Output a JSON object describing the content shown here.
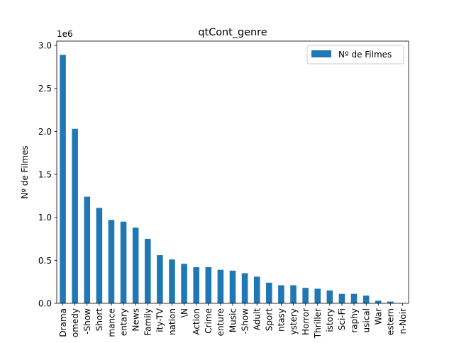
{
  "chart_data": {
    "type": "bar",
    "title": "qtCont_genre",
    "ylabel": "Nº de Filmes",
    "xlabel": "",
    "y_multiplier_label": "1e6",
    "ylim": [
      0,
      3.05
    ],
    "yticks": [
      0.0,
      0.5,
      1.0,
      1.5,
      2.0,
      2.5,
      3.0
    ],
    "ytick_labels": [
      "0.0",
      "0.5",
      "1.0",
      "1.5",
      "2.0",
      "2.5",
      "3.0"
    ],
    "categories": [
      "Drama",
      "Comedy",
      "Talk-Show",
      "Short",
      "Romance",
      "Documentary",
      "News",
      "Family",
      "Reality-TV",
      "Animation",
      "\\N",
      "Action",
      "Crime",
      "Adventure",
      "Music",
      "Game-Show",
      "Adult",
      "Sport",
      "Fantasy",
      "Mystery",
      "Horror",
      "Thriller",
      "History",
      "Sci-Fi",
      "Biography",
      "Musical",
      "War",
      "Western",
      "Film-Noir"
    ],
    "tick_labels_visible": [
      "Drama",
      "omedy",
      "-Show",
      "Short",
      "mance",
      "entary",
      "News",
      "Family",
      "ity-TV",
      "nation",
      "\\N",
      "Action",
      "Crime",
      "enture",
      "Music",
      "-Show",
      "Adult",
      "Sport",
      "ntasy",
      "ystery",
      "Horror",
      "Thriller",
      "istory",
      "Sci-Fi",
      "raphy",
      "usical",
      "War",
      "estern",
      "n-Noir"
    ],
    "series": [
      {
        "name": "Nº de Filmes",
        "values": [
          2.89,
          2.03,
          1.24,
          1.11,
          0.97,
          0.95,
          0.88,
          0.75,
          0.56,
          0.51,
          0.46,
          0.42,
          0.42,
          0.39,
          0.38,
          0.35,
          0.31,
          0.24,
          0.21,
          0.21,
          0.18,
          0.17,
          0.15,
          0.11,
          0.11,
          0.09,
          0.03,
          0.02,
          0.001
        ]
      }
    ],
    "legend_position": "top-right",
    "grid": false,
    "bar_color": "#1f77b4"
  }
}
